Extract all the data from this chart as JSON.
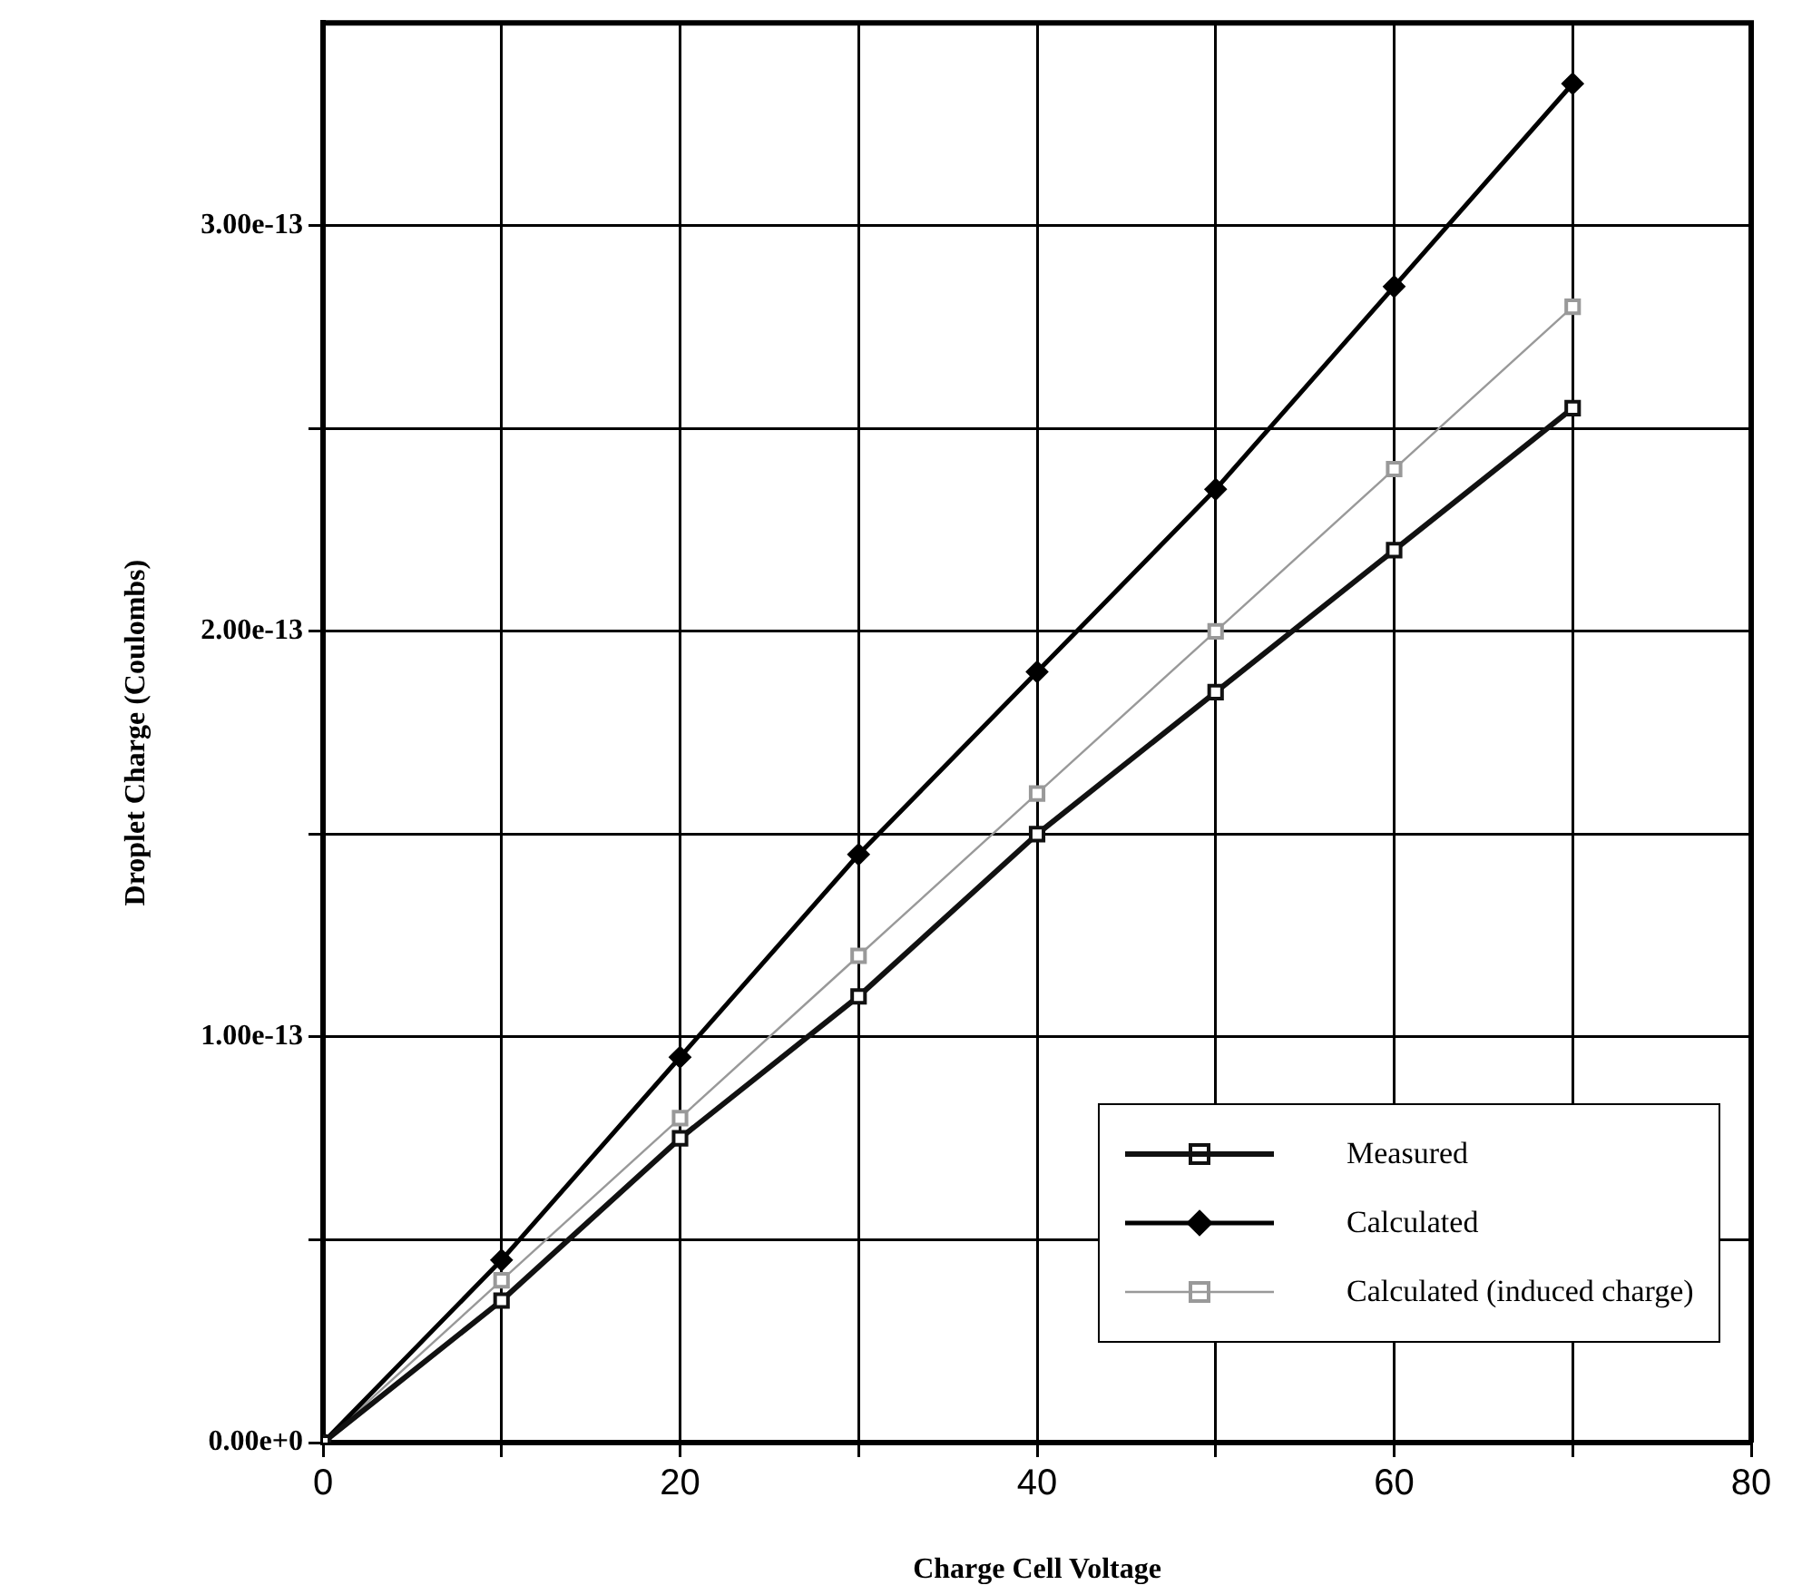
{
  "chart_data": {
    "type": "line",
    "xlabel": "Charge Cell Voltage",
    "ylabel": "Droplet Charge (Coulombs)",
    "x": [
      0,
      10,
      20,
      30,
      40,
      50,
      60,
      70
    ],
    "series": [
      {
        "name": "Measured",
        "color": "#111111",
        "marker": "square",
        "values": [
          0,
          3.5e-14,
          7.5e-14,
          1.1e-13,
          1.5e-13,
          1.85e-13,
          2.2e-13,
          2.55e-13
        ]
      },
      {
        "name": "Calculated",
        "color": "#000000",
        "marker": "diamond",
        "values": [
          0,
          4.5e-14,
          9.5e-14,
          1.45e-13,
          1.9e-13,
          2.35e-13,
          2.85e-13,
          3.35e-13
        ]
      },
      {
        "name": "Calculated (induced charge)",
        "color": "#999999",
        "marker": "square",
        "values": [
          0,
          4e-14,
          8e-14,
          1.2e-13,
          1.6e-13,
          2e-13,
          2.4e-13,
          2.8e-13
        ]
      }
    ],
    "xlim": [
      0,
      80
    ],
    "xticks": [
      0,
      {
        "value": 10,
        "label": null
      },
      20,
      {
        "value": 30,
        "label": null
      },
      40,
      {
        "value": 50,
        "label": null
      },
      60,
      {
        "value": 70,
        "label": null
      },
      80
    ],
    "ylim": [
      0,
      3.5e-13
    ],
    "yticks": [
      {
        "value": 0,
        "label": "0.00e+0"
      },
      {
        "value": 5e-14,
        "label": null
      },
      {
        "value": 1e-13,
        "label": "1.00e-13"
      },
      {
        "value": 1.5e-13,
        "label": null
      },
      {
        "value": 2e-13,
        "label": "2.00e-13"
      },
      {
        "value": 2.5e-13,
        "label": null
      },
      {
        "value": 3e-13,
        "label": "3.00e-13"
      }
    ],
    "grid": true,
    "legend": "bottom right"
  }
}
